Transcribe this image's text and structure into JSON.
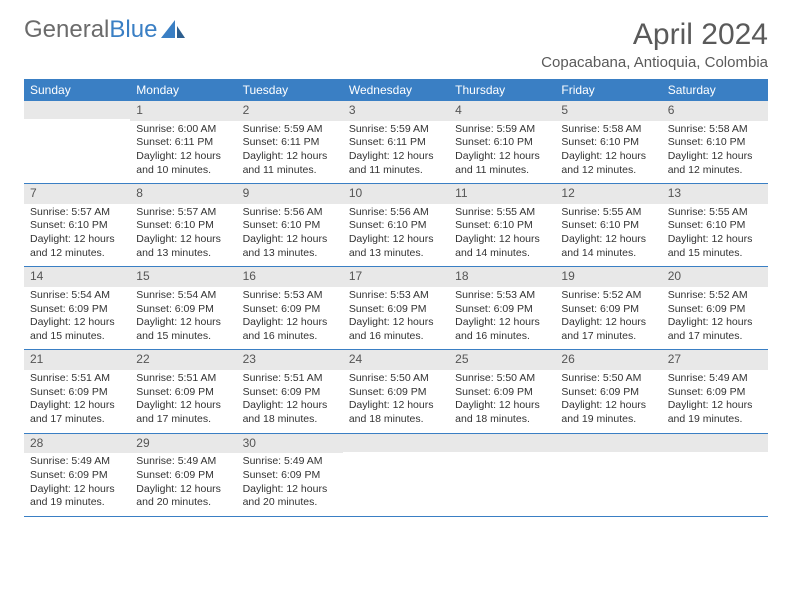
{
  "logo": {
    "text_gray": "General",
    "text_blue": "Blue"
  },
  "title": "April 2024",
  "location": "Copacabana, Antioquia, Colombia",
  "day_names": [
    "Sunday",
    "Monday",
    "Tuesday",
    "Wednesday",
    "Thursday",
    "Friday",
    "Saturday"
  ],
  "colors": {
    "header_bg": "#3a7fc4",
    "header_text": "#ffffff",
    "daynum_bg": "#e8e8e8",
    "text": "#333333",
    "logo_gray": "#6b6b6b",
    "logo_blue": "#3a7fc4",
    "title_color": "#5a5a5a"
  },
  "weeks": [
    [
      {
        "n": "",
        "sunrise": "",
        "sunset": "",
        "daylight": ""
      },
      {
        "n": "1",
        "sunrise": "6:00 AM",
        "sunset": "6:11 PM",
        "daylight": "12 hours and 10 minutes."
      },
      {
        "n": "2",
        "sunrise": "5:59 AM",
        "sunset": "6:11 PM",
        "daylight": "12 hours and 11 minutes."
      },
      {
        "n": "3",
        "sunrise": "5:59 AM",
        "sunset": "6:11 PM",
        "daylight": "12 hours and 11 minutes."
      },
      {
        "n": "4",
        "sunrise": "5:59 AM",
        "sunset": "6:10 PM",
        "daylight": "12 hours and 11 minutes."
      },
      {
        "n": "5",
        "sunrise": "5:58 AM",
        "sunset": "6:10 PM",
        "daylight": "12 hours and 12 minutes."
      },
      {
        "n": "6",
        "sunrise": "5:58 AM",
        "sunset": "6:10 PM",
        "daylight": "12 hours and 12 minutes."
      }
    ],
    [
      {
        "n": "7",
        "sunrise": "5:57 AM",
        "sunset": "6:10 PM",
        "daylight": "12 hours and 12 minutes."
      },
      {
        "n": "8",
        "sunrise": "5:57 AM",
        "sunset": "6:10 PM",
        "daylight": "12 hours and 13 minutes."
      },
      {
        "n": "9",
        "sunrise": "5:56 AM",
        "sunset": "6:10 PM",
        "daylight": "12 hours and 13 minutes."
      },
      {
        "n": "10",
        "sunrise": "5:56 AM",
        "sunset": "6:10 PM",
        "daylight": "12 hours and 13 minutes."
      },
      {
        "n": "11",
        "sunrise": "5:55 AM",
        "sunset": "6:10 PM",
        "daylight": "12 hours and 14 minutes."
      },
      {
        "n": "12",
        "sunrise": "5:55 AM",
        "sunset": "6:10 PM",
        "daylight": "12 hours and 14 minutes."
      },
      {
        "n": "13",
        "sunrise": "5:55 AM",
        "sunset": "6:10 PM",
        "daylight": "12 hours and 15 minutes."
      }
    ],
    [
      {
        "n": "14",
        "sunrise": "5:54 AM",
        "sunset": "6:09 PM",
        "daylight": "12 hours and 15 minutes."
      },
      {
        "n": "15",
        "sunrise": "5:54 AM",
        "sunset": "6:09 PM",
        "daylight": "12 hours and 15 minutes."
      },
      {
        "n": "16",
        "sunrise": "5:53 AM",
        "sunset": "6:09 PM",
        "daylight": "12 hours and 16 minutes."
      },
      {
        "n": "17",
        "sunrise": "5:53 AM",
        "sunset": "6:09 PM",
        "daylight": "12 hours and 16 minutes."
      },
      {
        "n": "18",
        "sunrise": "5:53 AM",
        "sunset": "6:09 PM",
        "daylight": "12 hours and 16 minutes."
      },
      {
        "n": "19",
        "sunrise": "5:52 AM",
        "sunset": "6:09 PM",
        "daylight": "12 hours and 17 minutes."
      },
      {
        "n": "20",
        "sunrise": "5:52 AM",
        "sunset": "6:09 PM",
        "daylight": "12 hours and 17 minutes."
      }
    ],
    [
      {
        "n": "21",
        "sunrise": "5:51 AM",
        "sunset": "6:09 PM",
        "daylight": "12 hours and 17 minutes."
      },
      {
        "n": "22",
        "sunrise": "5:51 AM",
        "sunset": "6:09 PM",
        "daylight": "12 hours and 17 minutes."
      },
      {
        "n": "23",
        "sunrise": "5:51 AM",
        "sunset": "6:09 PM",
        "daylight": "12 hours and 18 minutes."
      },
      {
        "n": "24",
        "sunrise": "5:50 AM",
        "sunset": "6:09 PM",
        "daylight": "12 hours and 18 minutes."
      },
      {
        "n": "25",
        "sunrise": "5:50 AM",
        "sunset": "6:09 PM",
        "daylight": "12 hours and 18 minutes."
      },
      {
        "n": "26",
        "sunrise": "5:50 AM",
        "sunset": "6:09 PM",
        "daylight": "12 hours and 19 minutes."
      },
      {
        "n": "27",
        "sunrise": "5:49 AM",
        "sunset": "6:09 PM",
        "daylight": "12 hours and 19 minutes."
      }
    ],
    [
      {
        "n": "28",
        "sunrise": "5:49 AM",
        "sunset": "6:09 PM",
        "daylight": "12 hours and 19 minutes."
      },
      {
        "n": "29",
        "sunrise": "5:49 AM",
        "sunset": "6:09 PM",
        "daylight": "12 hours and 20 minutes."
      },
      {
        "n": "30",
        "sunrise": "5:49 AM",
        "sunset": "6:09 PM",
        "daylight": "12 hours and 20 minutes."
      },
      {
        "n": "",
        "sunrise": "",
        "sunset": "",
        "daylight": ""
      },
      {
        "n": "",
        "sunrise": "",
        "sunset": "",
        "daylight": ""
      },
      {
        "n": "",
        "sunrise": "",
        "sunset": "",
        "daylight": ""
      },
      {
        "n": "",
        "sunrise": "",
        "sunset": "",
        "daylight": ""
      }
    ]
  ]
}
